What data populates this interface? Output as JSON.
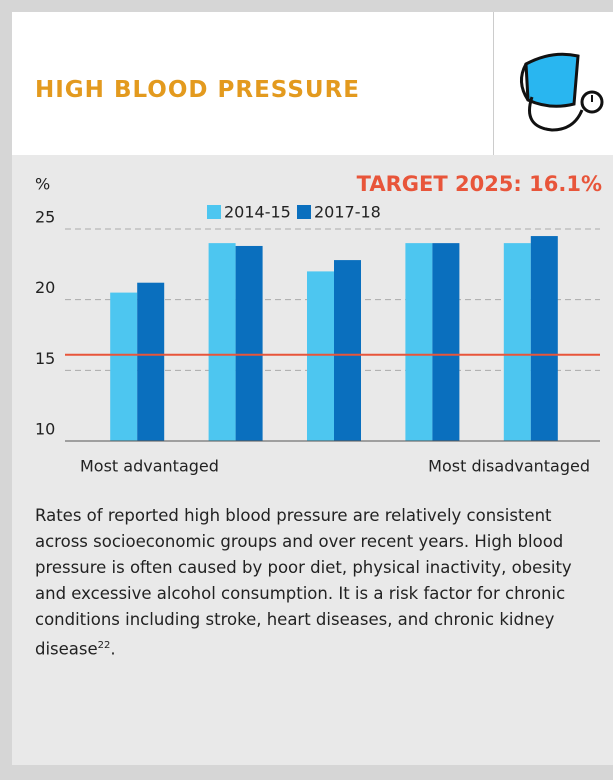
{
  "header": {
    "title": "HIGH BLOOD PRESSURE"
  },
  "chart_data": {
    "type": "bar",
    "y_label": "%",
    "target_label": "TARGET 2025: 16.1%",
    "target": 16.1,
    "target_color": "#e8553a",
    "categories": [
      "Most advantaged",
      null,
      null,
      null,
      "Most disadvantaged"
    ],
    "series": [
      {
        "name": "2014-15",
        "color": "#4dc6f0",
        "values": [
          20.5,
          24.0,
          22.0,
          24.0,
          24.0
        ]
      },
      {
        "name": "2017-18",
        "color": "#0a6fbe",
        "values": [
          21.2,
          23.8,
          22.8,
          24.0,
          24.5
        ]
      }
    ],
    "ylim": [
      10,
      25
    ],
    "yticks": [
      10,
      15,
      20,
      25
    ],
    "grid": true
  },
  "description": {
    "text": "Rates of reported high blood pressure are relatively consistent across socioeconomic groups and over recent years. High blood pressure is often caused by poor diet, physical inactivity, obesity and excessive alcohol consumption. It is a risk factor for chronic conditions including stroke, heart diseases, and chronic kidney disease",
    "footnote": "22",
    "end": "."
  }
}
